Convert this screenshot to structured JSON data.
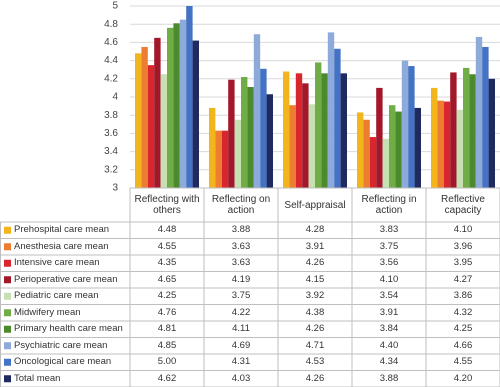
{
  "chart_data": {
    "type": "bar",
    "categories": [
      "Reflecting with others",
      "Reflecting on action",
      "Self-appraisal",
      "Reflecting in action",
      "Reflective capacity"
    ],
    "series": [
      {
        "name": "Prehospital care mean",
        "color": "#f2b51c",
        "values": [
          4.48,
          3.88,
          4.28,
          3.83,
          4.1
        ],
        "value_labels": [
          "4.48",
          "3.88",
          "4.28",
          "3.83",
          "4.10"
        ]
      },
      {
        "name": "Anesthesia care mean",
        "color": "#ed7d31",
        "values": [
          4.55,
          3.63,
          3.91,
          3.75,
          3.96
        ],
        "value_labels": [
          "4.55",
          "3.63",
          "3.91",
          "3.75",
          "3.96"
        ]
      },
      {
        "name": "Intensive care mean",
        "color": "#d9262c",
        "values": [
          4.35,
          3.63,
          4.26,
          3.56,
          3.95
        ],
        "value_labels": [
          "4.35",
          "3.63",
          "4.26",
          "3.56",
          "3.95"
        ]
      },
      {
        "name": "Perioperative care mean",
        "color": "#a3172b",
        "values": [
          4.65,
          4.19,
          4.15,
          4.1,
          4.27
        ],
        "value_labels": [
          "4.65",
          "4.19",
          "4.15",
          "4.10",
          "4.27"
        ]
      },
      {
        "name": "Pediatric care mean",
        "color": "#c6e0b4",
        "values": [
          4.25,
          3.75,
          3.92,
          3.54,
          3.86
        ],
        "value_labels": [
          "4.25",
          "3.75",
          "3.92",
          "3.54",
          "3.86"
        ]
      },
      {
        "name": "Midwifery mean",
        "color": "#70ad47",
        "values": [
          4.76,
          4.22,
          4.38,
          3.91,
          4.32
        ],
        "value_labels": [
          "4.76",
          "4.22",
          "4.38",
          "3.91",
          "4.32"
        ]
      },
      {
        "name": "Primary health care mean",
        "color": "#4b8a2d",
        "values": [
          4.81,
          4.11,
          4.26,
          3.84,
          4.25
        ],
        "value_labels": [
          "4.81",
          "4.11",
          "4.26",
          "3.84",
          "4.25"
        ]
      },
      {
        "name": "Psychiatric care mean",
        "color": "#8eaadb",
        "values": [
          4.85,
          4.69,
          4.71,
          4.4,
          4.66
        ],
        "value_labels": [
          "4.85",
          "4.69",
          "4.71",
          "4.40",
          "4.66"
        ]
      },
      {
        "name": "Oncological care mean",
        "color": "#4472c4",
        "values": [
          5.0,
          4.31,
          4.53,
          4.34,
          4.55
        ],
        "value_labels": [
          "5.00",
          "4.31",
          "4.53",
          "4.34",
          "4.55"
        ]
      },
      {
        "name": "Total mean",
        "color": "#1f2a5e",
        "values": [
          4.62,
          4.03,
          4.26,
          3.88,
          4.2
        ],
        "value_labels": [
          "4.62",
          "4.03",
          "4.26",
          "3.88",
          "4.20"
        ]
      }
    ],
    "ylim": [
      3,
      5
    ],
    "yticks": [
      3,
      3.2,
      3.4,
      3.6,
      3.8,
      4,
      4.2,
      4.4,
      4.6,
      4.8,
      5
    ],
    "grid": true
  }
}
